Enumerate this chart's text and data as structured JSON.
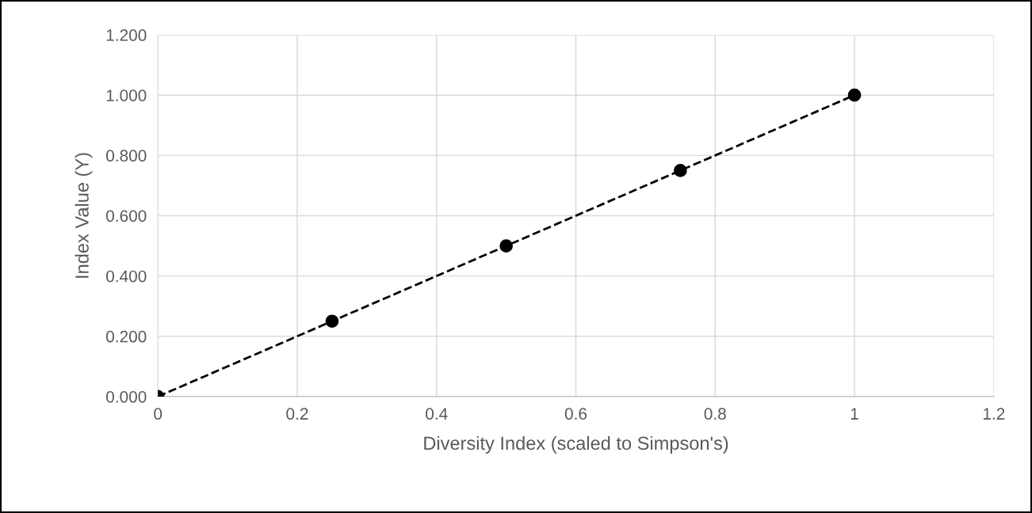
{
  "chart_data": {
    "type": "line",
    "xlabel": "Diversity Index (scaled to Simpson's)",
    "ylabel": "Index Value (Y)",
    "x": [
      0,
      0.25,
      0.5,
      0.75,
      1
    ],
    "series": [
      {
        "color": "#000000",
        "values": [
          0,
          0.25,
          0.5,
          0.75,
          1
        ]
      }
    ],
    "marker": "circle",
    "line_style": "dashed",
    "grid": true,
    "xlim": [
      0,
      1.2
    ],
    "xticks": [
      0,
      0.2,
      0.4,
      0.6,
      0.8,
      1,
      1.2
    ],
    "ylim": [
      0,
      1.2
    ],
    "yticks": [
      {
        "value": 0,
        "label": "0.000"
      },
      {
        "value": 0.2,
        "label": "0.200"
      },
      {
        "value": 0.4,
        "label": "0.400"
      },
      {
        "value": 0.6,
        "label": "0.600"
      },
      {
        "value": 0.8,
        "label": "0.800"
      },
      {
        "value": 1,
        "label": "1.000"
      },
      {
        "value": 1.2,
        "label": "1.200"
      }
    ]
  }
}
